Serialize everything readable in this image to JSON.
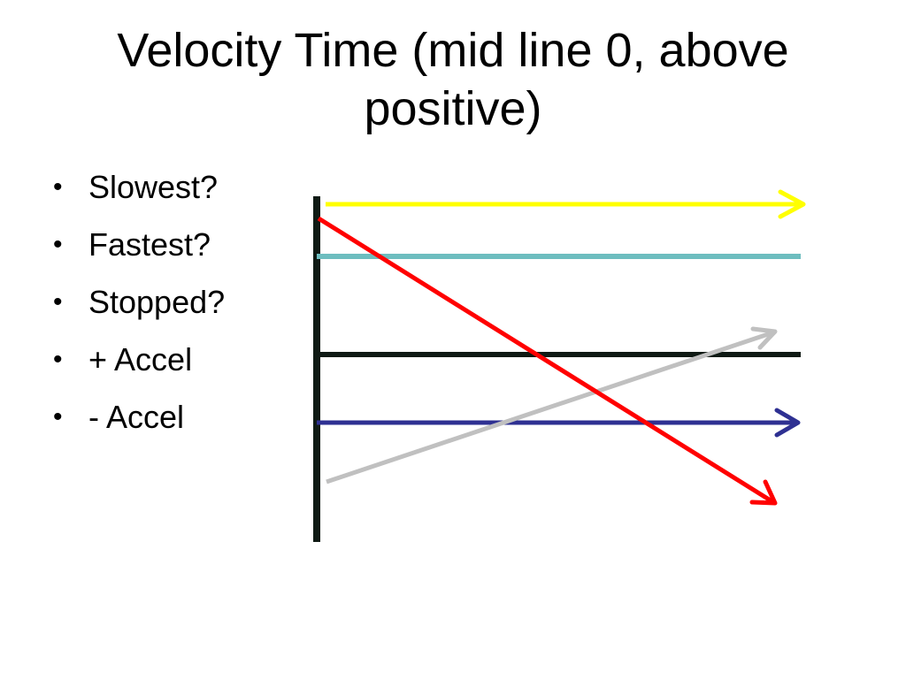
{
  "slide": {
    "title": "Velocity Time (mid line 0, above positive)"
  },
  "bullets": [
    {
      "marker": "•",
      "text": "Slowest?"
    },
    {
      "marker": "•",
      "text": "Fastest?"
    },
    {
      "marker": "•",
      "text": "Stopped?"
    },
    {
      "marker": "•",
      "text": "+ Accel"
    },
    {
      "marker": "•",
      "text": "- Accel"
    }
  ],
  "diagram": {
    "colors": {
      "axis": "#0f1a14",
      "zero_line": "#0f1a14",
      "yellow_line": "#ffff00",
      "teal_line": "#6dbdbf",
      "blue_line": "#2e3092",
      "gray_line": "#c0c0c0",
      "red_line": "#ff0000"
    },
    "lines": [
      {
        "name": "yellow",
        "arrow": true
      },
      {
        "name": "teal",
        "arrow": false
      },
      {
        "name": "zero",
        "arrow": false
      },
      {
        "name": "blue",
        "arrow": true
      },
      {
        "name": "gray",
        "arrow": true
      },
      {
        "name": "red",
        "arrow": true
      }
    ]
  }
}
